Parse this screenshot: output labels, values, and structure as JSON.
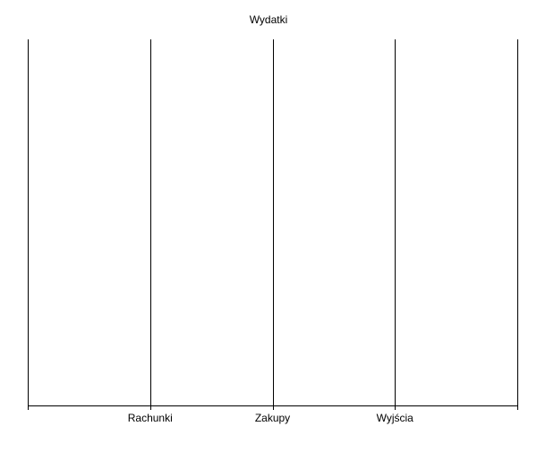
{
  "chart_data": {
    "type": "line",
    "title": "Wydatki",
    "xlabel": "",
    "ylabel": "",
    "categories": [
      "Rachunki",
      "Zakupy",
      "Wyjścia"
    ],
    "series": [],
    "grid": true,
    "legend": "none"
  },
  "colors": {
    "background": "#ffffff",
    "axis": "#000000",
    "grid": "#000000",
    "text": "#000000"
  }
}
